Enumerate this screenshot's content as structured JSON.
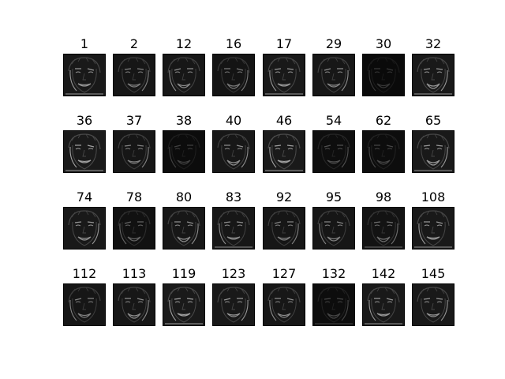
{
  "figure": {
    "background": "#ffffff",
    "tiles": [
      {
        "label": "1",
        "brightness": 0.55,
        "variant": 0
      },
      {
        "label": "2",
        "brightness": 0.45,
        "variant": 1
      },
      {
        "label": "12",
        "brightness": 0.5,
        "variant": 2
      },
      {
        "label": "16",
        "brightness": 0.4,
        "variant": 3
      },
      {
        "label": "17",
        "brightness": 0.55,
        "variant": 4
      },
      {
        "label": "29",
        "brightness": 0.5,
        "variant": 5
      },
      {
        "label": "30",
        "brightness": 0.08,
        "variant": 6
      },
      {
        "label": "32",
        "brightness": 0.55,
        "variant": 7
      },
      {
        "label": "36",
        "brightness": 0.6,
        "variant": 0
      },
      {
        "label": "37",
        "brightness": 0.45,
        "variant": 1
      },
      {
        "label": "38",
        "brightness": 0.12,
        "variant": 2
      },
      {
        "label": "40",
        "brightness": 0.5,
        "variant": 3
      },
      {
        "label": "46",
        "brightness": 0.6,
        "variant": 4
      },
      {
        "label": "54",
        "brightness": 0.2,
        "variant": 5
      },
      {
        "label": "62",
        "brightness": 0.15,
        "variant": 6
      },
      {
        "label": "65",
        "brightness": 0.55,
        "variant": 7
      },
      {
        "label": "74",
        "brightness": 0.55,
        "variant": 1
      },
      {
        "label": "78",
        "brightness": 0.3,
        "variant": 2
      },
      {
        "label": "80",
        "brightness": 0.5,
        "variant": 3
      },
      {
        "label": "83",
        "brightness": 0.5,
        "variant": 4
      },
      {
        "label": "92",
        "brightness": 0.45,
        "variant": 5
      },
      {
        "label": "95",
        "brightness": 0.45,
        "variant": 6
      },
      {
        "label": "98",
        "brightness": 0.35,
        "variant": 7
      },
      {
        "label": "108",
        "brightness": 0.55,
        "variant": 0
      },
      {
        "label": "112",
        "brightness": 0.45,
        "variant": 2
      },
      {
        "label": "113",
        "brightness": 0.5,
        "variant": 3
      },
      {
        "label": "119",
        "brightness": 0.6,
        "variant": 4
      },
      {
        "label": "123",
        "brightness": 0.55,
        "variant": 5
      },
      {
        "label": "127",
        "brightness": 0.5,
        "variant": 6
      },
      {
        "label": "132",
        "brightness": 0.15,
        "variant": 7
      },
      {
        "label": "142",
        "brightness": 0.55,
        "variant": 0
      },
      {
        "label": "145",
        "brightness": 0.55,
        "variant": 1
      }
    ]
  }
}
